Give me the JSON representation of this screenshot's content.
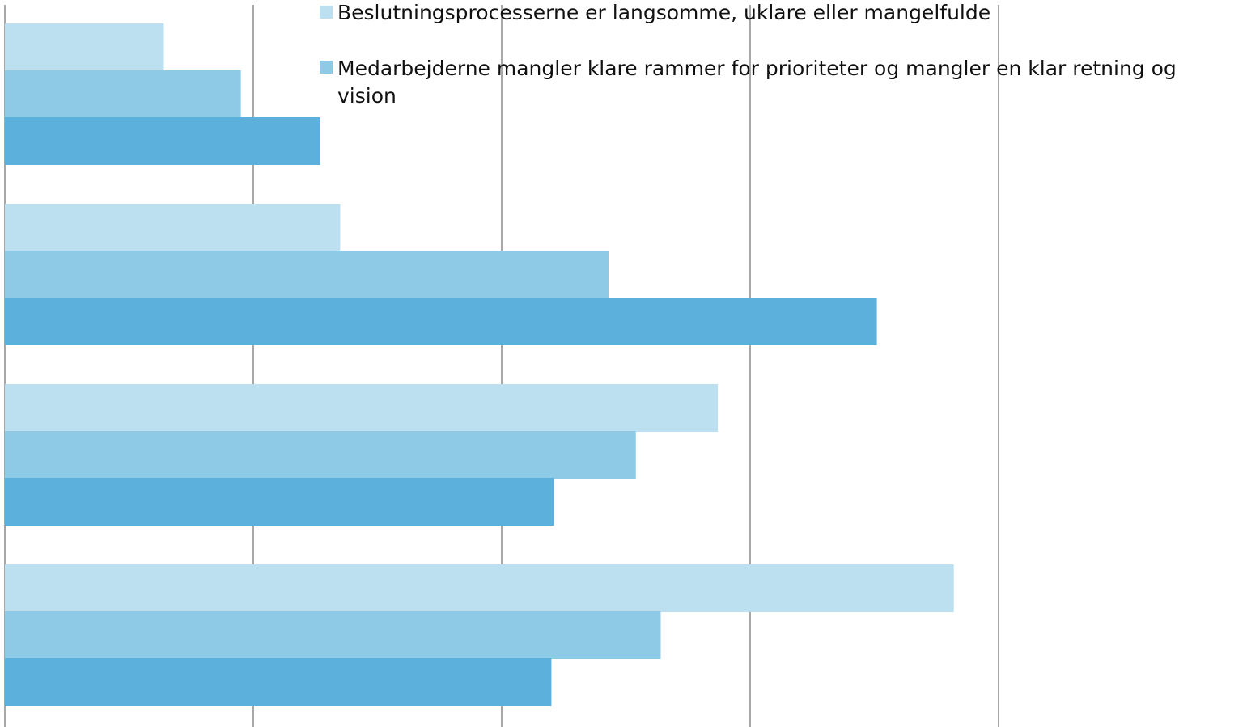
{
  "chart_data": {
    "type": "bar",
    "orientation": "horizontal",
    "categories": [
      "",
      "",
      "",
      ""
    ],
    "xlim": [
      0,
      20
    ],
    "grid": true,
    "legend_placement": "top-right",
    "series": [
      {
        "name": "Beslutningsprocesserne er langsomme, uklare eller mangelfulde",
        "color": "#bde0f0",
        "values": [
          3.2,
          6.75,
          14.35,
          19.1
        ]
      },
      {
        "name": "Medarbejderne mangler klare rammer for prioriteter og mangler en klar retning og vision",
        "color": "#8ec9e6",
        "values": [
          4.75,
          12.15,
          12.7,
          13.2
        ]
      },
      {
        "name": "",
        "color": "#5cb1dc",
        "values": [
          6.35,
          17.55,
          11.05,
          11.0
        ]
      }
    ]
  }
}
